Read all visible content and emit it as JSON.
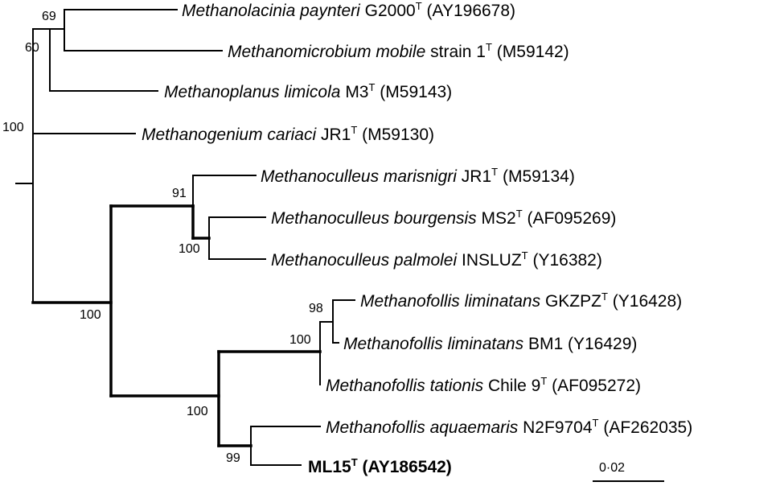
{
  "tree": {
    "taxa": [
      {
        "id": "t1",
        "name": "Methanolacinia paynteri",
        "strain": "G2000",
        "type_strain": true,
        "accession": "(AY196678)"
      },
      {
        "id": "t2",
        "name": "Methanomicrobium mobile",
        "strain": "strain 1",
        "type_strain": true,
        "accession": "(M59142)"
      },
      {
        "id": "t3",
        "name": "Methanoplanus limicola",
        "strain": "M3",
        "type_strain": true,
        "accession": "(M59143)"
      },
      {
        "id": "t4",
        "name": "Methanogenium cariaci",
        "strain": "JR1",
        "type_strain": true,
        "accession": "(M59130)"
      },
      {
        "id": "t5",
        "name": "Methanoculleus marisnigri",
        "strain": "JR1",
        "type_strain": true,
        "accession": "(M59134)"
      },
      {
        "id": "t6",
        "name": "Methanoculleus bourgensis",
        "strain": "MS2",
        "type_strain": true,
        "accession": "(AF095269)"
      },
      {
        "id": "t7",
        "name": "Methanoculleus palmolei",
        "strain": "INSLUZ",
        "type_strain": true,
        "accession": "(Y16382)"
      },
      {
        "id": "t8",
        "name": "Methanofollis liminatans",
        "strain": "GKZPZ",
        "type_strain": true,
        "accession": "(Y16428)"
      },
      {
        "id": "t9",
        "name": "Methanofollis liminatans",
        "strain": "BM1",
        "type_strain": false,
        "accession": "(Y16429)"
      },
      {
        "id": "t10",
        "name": "Methanofollis tationis",
        "strain": "Chile 9",
        "type_strain": true,
        "accession": "(AF095272)"
      },
      {
        "id": "t11",
        "name": "Methanofollis aquaemaris",
        "strain": "N2F9704",
        "type_strain": true,
        "accession": "(AF262035)"
      },
      {
        "id": "t12",
        "name": "",
        "strain": "ML15",
        "type_strain": true,
        "accession": "(AY186542)",
        "highlight": true
      }
    ],
    "bootstrap": {
      "b69": "69",
      "b60": "60",
      "b100_root": "100",
      "b91": "91",
      "b100_culleus": "100",
      "b100_big": "100",
      "b98": "98",
      "b100_follis": "100",
      "b100_follis_clade": "100",
      "b99": "99"
    },
    "type_strain_marker": "T",
    "scale_bar_label": "0·02"
  }
}
